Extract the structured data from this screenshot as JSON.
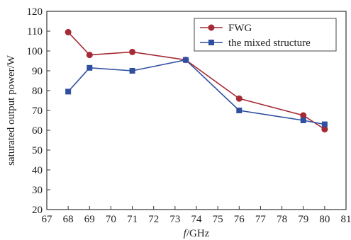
{
  "chart_data": {
    "type": "line",
    "xlabel_italic": "f",
    "xlabel_unit": "/GHz",
    "ylabel": "saturated output power/W",
    "xlim": [
      67,
      81
    ],
    "ylim": [
      20,
      120
    ],
    "xticks": [
      67,
      68,
      69,
      70,
      71,
      72,
      73,
      74,
      75,
      76,
      77,
      78,
      79,
      80,
      81
    ],
    "yticks": [
      20,
      30,
      40,
      50,
      60,
      70,
      80,
      90,
      100,
      110,
      120
    ],
    "grid": false,
    "legend_position": "top-right",
    "series": [
      {
        "name": "FWG",
        "color": "#a52a35",
        "marker": "circle",
        "x": [
          68,
          69,
          71,
          73.5,
          76,
          79,
          80
        ],
        "y": [
          109.5,
          98,
          99.5,
          95.5,
          76,
          67.5,
          60.5
        ]
      },
      {
        "name": "the mixed structure",
        "color": "#2f4fa0",
        "marker": "square",
        "x": [
          68,
          69,
          71,
          73.5,
          76,
          79,
          80
        ],
        "y": [
          79.5,
          91.5,
          90,
          95.5,
          70,
          65,
          63
        ]
      }
    ]
  }
}
